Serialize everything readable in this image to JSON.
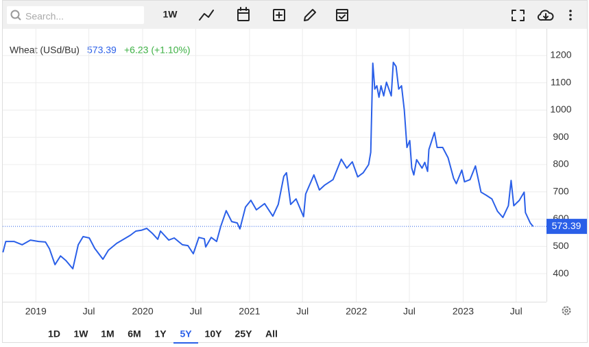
{
  "toolbar": {
    "search_placeholder": "Search...",
    "interval": "1W"
  },
  "chart_data": {
    "type": "line",
    "title": "Wheat (USd/Bu)",
    "price": 573.39,
    "change": "+6.23 (+1.10%)",
    "color": "#2a5fe8",
    "x": [
      2018.692,
      2018.718,
      2018.795,
      2018.872,
      2018.949,
      2019.026,
      2019.09,
      2019.128,
      2019.179,
      2019.231,
      2019.282,
      2019.346,
      2019.397,
      2019.442,
      2019.5,
      2019.551,
      2019.628,
      2019.679,
      2019.756,
      2019.808,
      2019.885,
      2019.936,
      2019.987,
      2020.038,
      2020.09,
      2020.141,
      2020.167,
      2020.244,
      2020.295,
      2020.372,
      2020.423,
      2020.474,
      2020.526,
      2020.577,
      2020.59,
      2020.641,
      2020.692,
      2020.731,
      2020.782,
      2020.833,
      2020.885,
      2020.91,
      2020.962,
      2021.013,
      2021.064,
      2021.141,
      2021.218,
      2021.269,
      2021.321,
      2021.346,
      2021.385,
      2021.436,
      2021.506,
      2021.526,
      2021.603,
      2021.654,
      2021.705,
      2021.782,
      2021.859,
      2021.91,
      2021.962,
      2022.013,
      2022.064,
      2022.115,
      2022.135,
      2022.154,
      2022.173,
      2022.192,
      2022.212,
      2022.231,
      2022.256,
      2022.282,
      2022.327,
      2022.346,
      2022.372,
      2022.397,
      2022.423,
      2022.449,
      2022.474,
      2022.5,
      2022.519,
      2022.538,
      2022.564,
      2022.615,
      2022.641,
      2022.667,
      2022.679,
      2022.731,
      2022.756,
      2022.808,
      2022.859,
      2022.91,
      2022.936,
      2022.987,
      2023.013,
      2023.064,
      2023.115,
      2023.167,
      2023.218,
      2023.269,
      2023.321,
      2023.372,
      2023.423,
      2023.449,
      2023.474,
      2023.526,
      2023.571,
      2023.583,
      2023.628,
      2023.654
    ],
    "values": [
      478,
      518,
      518,
      506,
      523,
      518,
      516,
      491,
      433,
      465,
      448,
      418,
      506,
      536,
      531,
      493,
      453,
      486,
      511,
      523,
      541,
      556,
      559,
      566,
      548,
      526,
      556,
      523,
      531,
      506,
      503,
      473,
      533,
      528,
      498,
      533,
      518,
      574,
      631,
      591,
      586,
      564,
      644,
      669,
      634,
      657,
      611,
      654,
      757,
      770,
      654,
      674,
      609,
      692,
      762,
      707,
      725,
      745,
      820,
      787,
      810,
      755,
      770,
      800,
      845,
      1172,
      1077,
      1089,
      1047,
      1089,
      1052,
      1102,
      1052,
      1175,
      1160,
      1077,
      1089,
      1001,
      863,
      888,
      787,
      762,
      818,
      787,
      808,
      775,
      855,
      918,
      863,
      863,
      825,
      750,
      730,
      780,
      737,
      745,
      795,
      699,
      687,
      674,
      629,
      606,
      649,
      742,
      649,
      669,
      699,
      624,
      586,
      573.39
    ],
    "xlim": [
      2018.69,
      2023.78
    ],
    "ylim": [
      297,
      1298
    ],
    "xticks": [
      {
        "value": 2019,
        "label": "2019"
      },
      {
        "value": 2019.496,
        "label": "Jul"
      },
      {
        "value": 2020,
        "label": "2020"
      },
      {
        "value": 2020.497,
        "label": "Jul"
      },
      {
        "value": 2021,
        "label": "2021"
      },
      {
        "value": 2021.496,
        "label": "Jul"
      },
      {
        "value": 2022,
        "label": "2022"
      },
      {
        "value": 2022.496,
        "label": "Jul"
      },
      {
        "value": 2023,
        "label": "2023"
      },
      {
        "value": 2023.496,
        "label": "Jul"
      }
    ],
    "yticks": [
      400,
      500,
      600,
      700,
      800,
      900,
      1000,
      1100,
      1200
    ],
    "grid": true
  },
  "ranges": [
    "1D",
    "1W",
    "1M",
    "6M",
    "1Y",
    "5Y",
    "10Y",
    "25Y",
    "All"
  ],
  "selected_range": "5Y"
}
